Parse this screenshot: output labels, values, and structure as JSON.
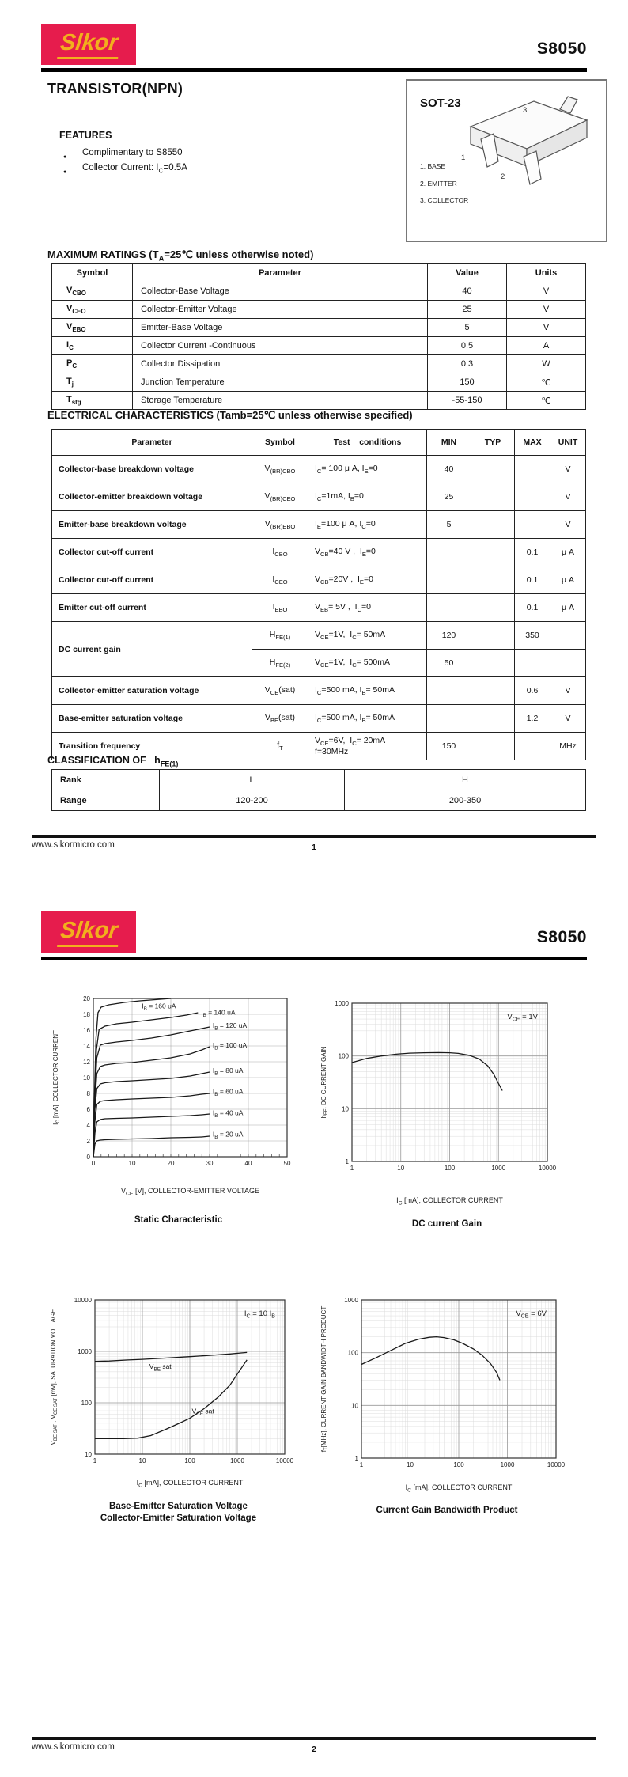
{
  "brand": {
    "logo_text": "Slkor",
    "part_number": "S8050"
  },
  "page1": {
    "title": "TRANSISTOR(NPN)",
    "features": {
      "heading": "FEATURES",
      "items": [
        "Complimentary to S8550",
        "Collector Current: I~C~=0.5A"
      ]
    },
    "package": {
      "name": "SOT-23",
      "pin_numbers": [
        "1",
        "2",
        "3"
      ],
      "pins": [
        "1. BASE",
        "2. EMITTER",
        "3. COLLECTOR"
      ]
    },
    "max_ratings": {
      "heading": "MAXIMUM RATINGS (T~A~=25℃ unless otherwise noted)",
      "headers": [
        "Symbol",
        "Parameter",
        "Value",
        "Units"
      ],
      "rows": [
        [
          "V~CBO~",
          "Collector-Base Voltage",
          "40",
          "V"
        ],
        [
          "V~CEO~",
          "Collector-Emitter Voltage",
          "25",
          "V"
        ],
        [
          "V~EBO~",
          "Emitter-Base Voltage",
          "5",
          "V"
        ],
        [
          "I~C~",
          "Collector Current -Continuous",
          "0.5",
          "A"
        ],
        [
          "P~C~",
          "Collector Dissipation",
          "0.3",
          "W"
        ],
        [
          "T~j~",
          "Junction Temperature",
          "150",
          "℃"
        ],
        [
          "T~stg~",
          "Storage Temperature",
          "-55-150",
          "℃"
        ]
      ]
    },
    "electrical": {
      "heading": "ELECTRICAL CHARACTERISTICS (Tamb=25℃ unless otherwise specified)",
      "headers": [
        "Parameter",
        "Symbol",
        "Test    conditions",
        "MIN",
        "TYP",
        "MAX",
        "UNIT"
      ],
      "rows": [
        {
          "param": "Collector-base breakdown voltage",
          "symbol": "V~(BR)CBO~",
          "cond": "I~C~= 100 μ A, I~E~=0",
          "min": "40",
          "typ": "",
          "max": "",
          "unit": "V"
        },
        {
          "param": "Collector-emitter breakdown voltage",
          "symbol": "V~(BR)CEO~",
          "cond": "I~C~=1mA, I~B~=0",
          "min": "25",
          "typ": "",
          "max": "",
          "unit": "V"
        },
        {
          "param": "Emitter-base breakdown voltage",
          "symbol": "V~(BR)EBO~",
          "cond": "I~E~=100 μ A, I~C~=0",
          "min": "5",
          "typ": "",
          "max": "",
          "unit": "V"
        },
        {
          "param": "Collector cut-off current",
          "symbol": "I~CBO~",
          "cond": "V~CB~=40 V ,  I~E~=0",
          "min": "",
          "typ": "",
          "max": "0.1",
          "unit": "μ A"
        },
        {
          "param": "Collector cut-off current",
          "symbol": "I~CEO~",
          "cond": "V~CB~=20V ,  I~E~=0",
          "min": "",
          "typ": "",
          "max": "0.1",
          "unit": "μ A"
        },
        {
          "param": "Emitter cut-off current",
          "symbol": "I~EBO~",
          "cond": "V~EB~= 5V ,  I~C~=0",
          "min": "",
          "typ": "",
          "max": "0.1",
          "unit": "μ A"
        },
        {
          "param": "DC current gain",
          "rowspan": 2,
          "symbol": "H~FE(1)~",
          "cond": "V~CE~=1V,  I~C~= 50mA",
          "min": "120",
          "typ": "",
          "max": "350",
          "unit": ""
        },
        {
          "param": null,
          "symbol": "H~FE(2)~",
          "cond": "V~CE~=1V,  I~C~= 500mA",
          "min": "50",
          "typ": "",
          "max": "",
          "unit": ""
        },
        {
          "param": "Collector-emitter saturation voltage",
          "symbol": "V~CE~(sat)",
          "cond": "I~C~=500 mA, I~B~= 50mA",
          "min": "",
          "typ": "",
          "max": "0.6",
          "unit": "V"
        },
        {
          "param": "Base-emitter saturation voltage",
          "symbol": "V~BE~(sat)",
          "cond": "I~C~=500 mA, I~B~= 50mA",
          "min": "",
          "typ": "",
          "max": "1.2",
          "unit": "V"
        },
        {
          "param": "Transition frequency",
          "symbol": "f~T~",
          "cond": "V~CE~=6V,  I~C~= 20mA\nf=30MHz",
          "min": "150",
          "typ": "",
          "max": "",
          "unit": "MHz"
        }
      ]
    },
    "classification": {
      "heading": "CLASSIFICATION OF   h~FE(1)~",
      "rows": [
        [
          "Rank",
          "L",
          "H"
        ],
        [
          "Range",
          "120-200",
          "200-350"
        ]
      ]
    },
    "footer": {
      "url": "www.slkormicro.com",
      "page": "1"
    }
  },
  "page2": {
    "footer": {
      "url": "www.slkormicro.com",
      "page": "2"
    },
    "charts": [
      {
        "id": "static",
        "type": "line",
        "scale": "linear",
        "x": {
          "min": 0,
          "max": 50,
          "ticks": [
            0,
            10,
            20,
            30,
            40,
            50
          ],
          "minor_step": 2
        },
        "y": {
          "min": 0,
          "max": 20,
          "ticks": [
            0,
            2,
            4,
            6,
            8,
            10,
            12,
            14,
            16,
            18,
            20
          ]
        },
        "xlabel": "V~CE~ [V], COLLECTOR-EMITTER VOLTAGE",
        "ylabel": "I~C~ [mA], COLLECTOR CURRENT",
        "title": "Static Characteristic",
        "grid": "on",
        "series": [
          {
            "label": "I~B~ = 160 uA",
            "label_pos": [
              12.5,
              18.75
            ],
            "points": [
              [
                0,
                0
              ],
              [
                0.3,
                8
              ],
              [
                0.7,
                15
              ],
              [
                1.2,
                18.2
              ],
              [
                2,
                18.9
              ],
              [
                4,
                19.2
              ],
              [
                8,
                19.5
              ],
              [
                12,
                19.7
              ],
              [
                16,
                19.85
              ],
              [
                20,
                20
              ]
            ]
          },
          {
            "label": "I~B~ = 140 uA",
            "label_pos": [
              27.8,
              17.95
            ],
            "points": [
              [
                0,
                0
              ],
              [
                0.35,
                8
              ],
              [
                0.8,
                13.5
              ],
              [
                1.5,
                16.1
              ],
              [
                3,
                16.5
              ],
              [
                6,
                16.8
              ],
              [
                10,
                17.0
              ],
              [
                15,
                17.3
              ],
              [
                20,
                17.6
              ],
              [
                24,
                17.9
              ],
              [
                27,
                18.2
              ]
            ]
          },
          {
            "label": "I~B~ = 120 uA",
            "label_pos": [
              30.8,
              16.3
            ],
            "points": [
              [
                0,
                0
              ],
              [
                0.4,
                8
              ],
              [
                0.9,
                12.5
              ],
              [
                1.8,
                14.1
              ],
              [
                3,
                14.3
              ],
              [
                6,
                14.5
              ],
              [
                10,
                14.7
              ],
              [
                15,
                15.0
              ],
              [
                20,
                15.4
              ],
              [
                25,
                15.9
              ],
              [
                28,
                16.2
              ],
              [
                30,
                16.4
              ]
            ]
          },
          {
            "label": "I~B~ = 100 uA",
            "label_pos": [
              30.8,
              13.8
            ],
            "points": [
              [
                0,
                0
              ],
              [
                0.4,
                7
              ],
              [
                0.9,
                10.5
              ],
              [
                1.8,
                11.4
              ],
              [
                3,
                11.6
              ],
              [
                6,
                11.8
              ],
              [
                10,
                11.9
              ],
              [
                15,
                12.2
              ],
              [
                20,
                12.5
              ],
              [
                25,
                13.0
              ],
              [
                28,
                13.5
              ],
              [
                30,
                13.9
              ]
            ]
          },
          {
            "label": "I~B~ = 80 uA",
            "label_pos": [
              30.8,
              10.6
            ],
            "points": [
              [
                0,
                0
              ],
              [
                0.4,
                6
              ],
              [
                0.9,
                8.6
              ],
              [
                1.8,
                9.2
              ],
              [
                3,
                9.35
              ],
              [
                6,
                9.5
              ],
              [
                10,
                9.6
              ],
              [
                15,
                9.75
              ],
              [
                20,
                9.9
              ],
              [
                25,
                10.2
              ],
              [
                28,
                10.5
              ],
              [
                30,
                10.7
              ]
            ]
          },
          {
            "label": "I~B~ = 60 uA",
            "label_pos": [
              30.8,
              7.95
            ],
            "points": [
              [
                0,
                0
              ],
              [
                0.4,
                4.5
              ],
              [
                0.9,
                6.6
              ],
              [
                1.8,
                7.0
              ],
              [
                3,
                7.1
              ],
              [
                6,
                7.2
              ],
              [
                10,
                7.3
              ],
              [
                15,
                7.4
              ],
              [
                20,
                7.5
              ],
              [
                25,
                7.7
              ],
              [
                28,
                7.9
              ],
              [
                30,
                8.0
              ]
            ]
          },
          {
            "label": "I~B~ = 40 uA",
            "label_pos": [
              30.8,
              5.25
            ],
            "points": [
              [
                0,
                0
              ],
              [
                0.4,
                3
              ],
              [
                0.9,
                4.4
              ],
              [
                1.8,
                4.7
              ],
              [
                3,
                4.8
              ],
              [
                6,
                4.85
              ],
              [
                10,
                4.9
              ],
              [
                15,
                5.0
              ],
              [
                20,
                5.1
              ],
              [
                25,
                5.2
              ],
              [
                28,
                5.3
              ],
              [
                30,
                5.4
              ]
            ]
          },
          {
            "label": "I~B~ = 20 uA",
            "label_pos": [
              30.8,
              2.55
            ],
            "points": [
              [
                0,
                0
              ],
              [
                0.4,
                1.6
              ],
              [
                0.9,
                2.0
              ],
              [
                1.8,
                2.1
              ],
              [
                3,
                2.15
              ],
              [
                6,
                2.2
              ],
              [
                10,
                2.25
              ],
              [
                15,
                2.3
              ],
              [
                20,
                2.4
              ],
              [
                25,
                2.45
              ],
              [
                28,
                2.5
              ],
              [
                30,
                2.6
              ]
            ]
          }
        ]
      },
      {
        "id": "gain",
        "type": "line",
        "scale": "loglog",
        "x": {
          "min": 1,
          "max": 10000
        },
        "y": {
          "min": 1,
          "max": 1000
        },
        "xlabel": "I~C~ [mA], COLLECTOR CURRENT",
        "ylabel": "h~FE~, DC CURRENT GAIN",
        "title": "DC current Gain",
        "grid": "on",
        "annotation": {
          "text": "V~CE~ = 1V"
        },
        "series": [
          {
            "points": [
              [
                1,
                75
              ],
              [
                2,
                90
              ],
              [
                4,
                100
              ],
              [
                8,
                108
              ],
              [
                15,
                113
              ],
              [
                30,
                115
              ],
              [
                60,
                116
              ],
              [
                100,
                115
              ],
              [
                150,
                112
              ],
              [
                250,
                103
              ],
              [
                400,
                88
              ],
              [
                600,
                65
              ],
              [
                800,
                45
              ],
              [
                1000,
                30
              ],
              [
                1200,
                22
              ]
            ]
          }
        ]
      },
      {
        "id": "sat",
        "type": "line",
        "scale": "loglog",
        "x": {
          "min": 1,
          "max": 10000
        },
        "y": {
          "min": 10,
          "max": 10000
        },
        "xlabel": "I~C~ [mA], COLLECTOR CURRENT",
        "ylabel": "V~BE SAT~ , V~CE SAT~  [mV], SATURATION VOLTAGE",
        "title": [
          "Base-Emitter Saturation Voltage",
          "Collector-Emitter Saturation Voltage"
        ],
        "grid": "on",
        "annotation": {
          "text": "I~C~ = 10 I~B~"
        },
        "series": [
          {
            "label": "V~BE~ sat",
            "label_pos": [
              14,
              460
            ],
            "points": [
              [
                1,
                640
              ],
              [
                2,
                650
              ],
              [
                5,
                680
              ],
              [
                10,
                700
              ],
              [
                30,
                740
              ],
              [
                100,
                790
              ],
              [
                300,
                840
              ],
              [
                700,
                890
              ],
              [
                1200,
                930
              ],
              [
                1600,
                950
              ]
            ]
          },
          {
            "label": "V~CE~ sat",
            "label_pos": [
              110,
              62
            ],
            "points": [
              [
                1,
                20
              ],
              [
                4,
                20
              ],
              [
                8,
                20.5
              ],
              [
                15,
                23
              ],
              [
                30,
                30
              ],
              [
                60,
                40
              ],
              [
                100,
                50
              ],
              [
                200,
                77
              ],
              [
                400,
                130
              ],
              [
                700,
                220
              ],
              [
                1000,
                360
              ],
              [
                1600,
                680
              ]
            ]
          }
        ]
      },
      {
        "id": "gbp",
        "type": "line",
        "scale": "loglog",
        "x": {
          "min": 1,
          "max": 10000
        },
        "y": {
          "min": 1,
          "max": 1000
        },
        "xlabel": "I~C~ [mA], COLLECTOR CURRENT",
        "ylabel": "f~T~[MHz], CURRENT GAIN BANDWIDTH PRODUCT",
        "title": "Current Gain Bandwidth Product",
        "grid": "on",
        "annotation": {
          "text": "V~CE~ = 6V"
        },
        "series": [
          {
            "points": [
              [
                1,
                60
              ],
              [
                2,
                80
              ],
              [
                4,
                110
              ],
              [
                8,
                150
              ],
              [
                15,
                180
              ],
              [
                25,
                196
              ],
              [
                35,
                200
              ],
              [
                50,
                193
              ],
              [
                80,
                175
              ],
              [
                120,
                150
              ],
              [
                200,
                118
              ],
              [
                300,
                90
              ],
              [
                450,
                62
              ],
              [
                600,
                42
              ],
              [
                700,
                30
              ]
            ]
          }
        ]
      }
    ]
  }
}
